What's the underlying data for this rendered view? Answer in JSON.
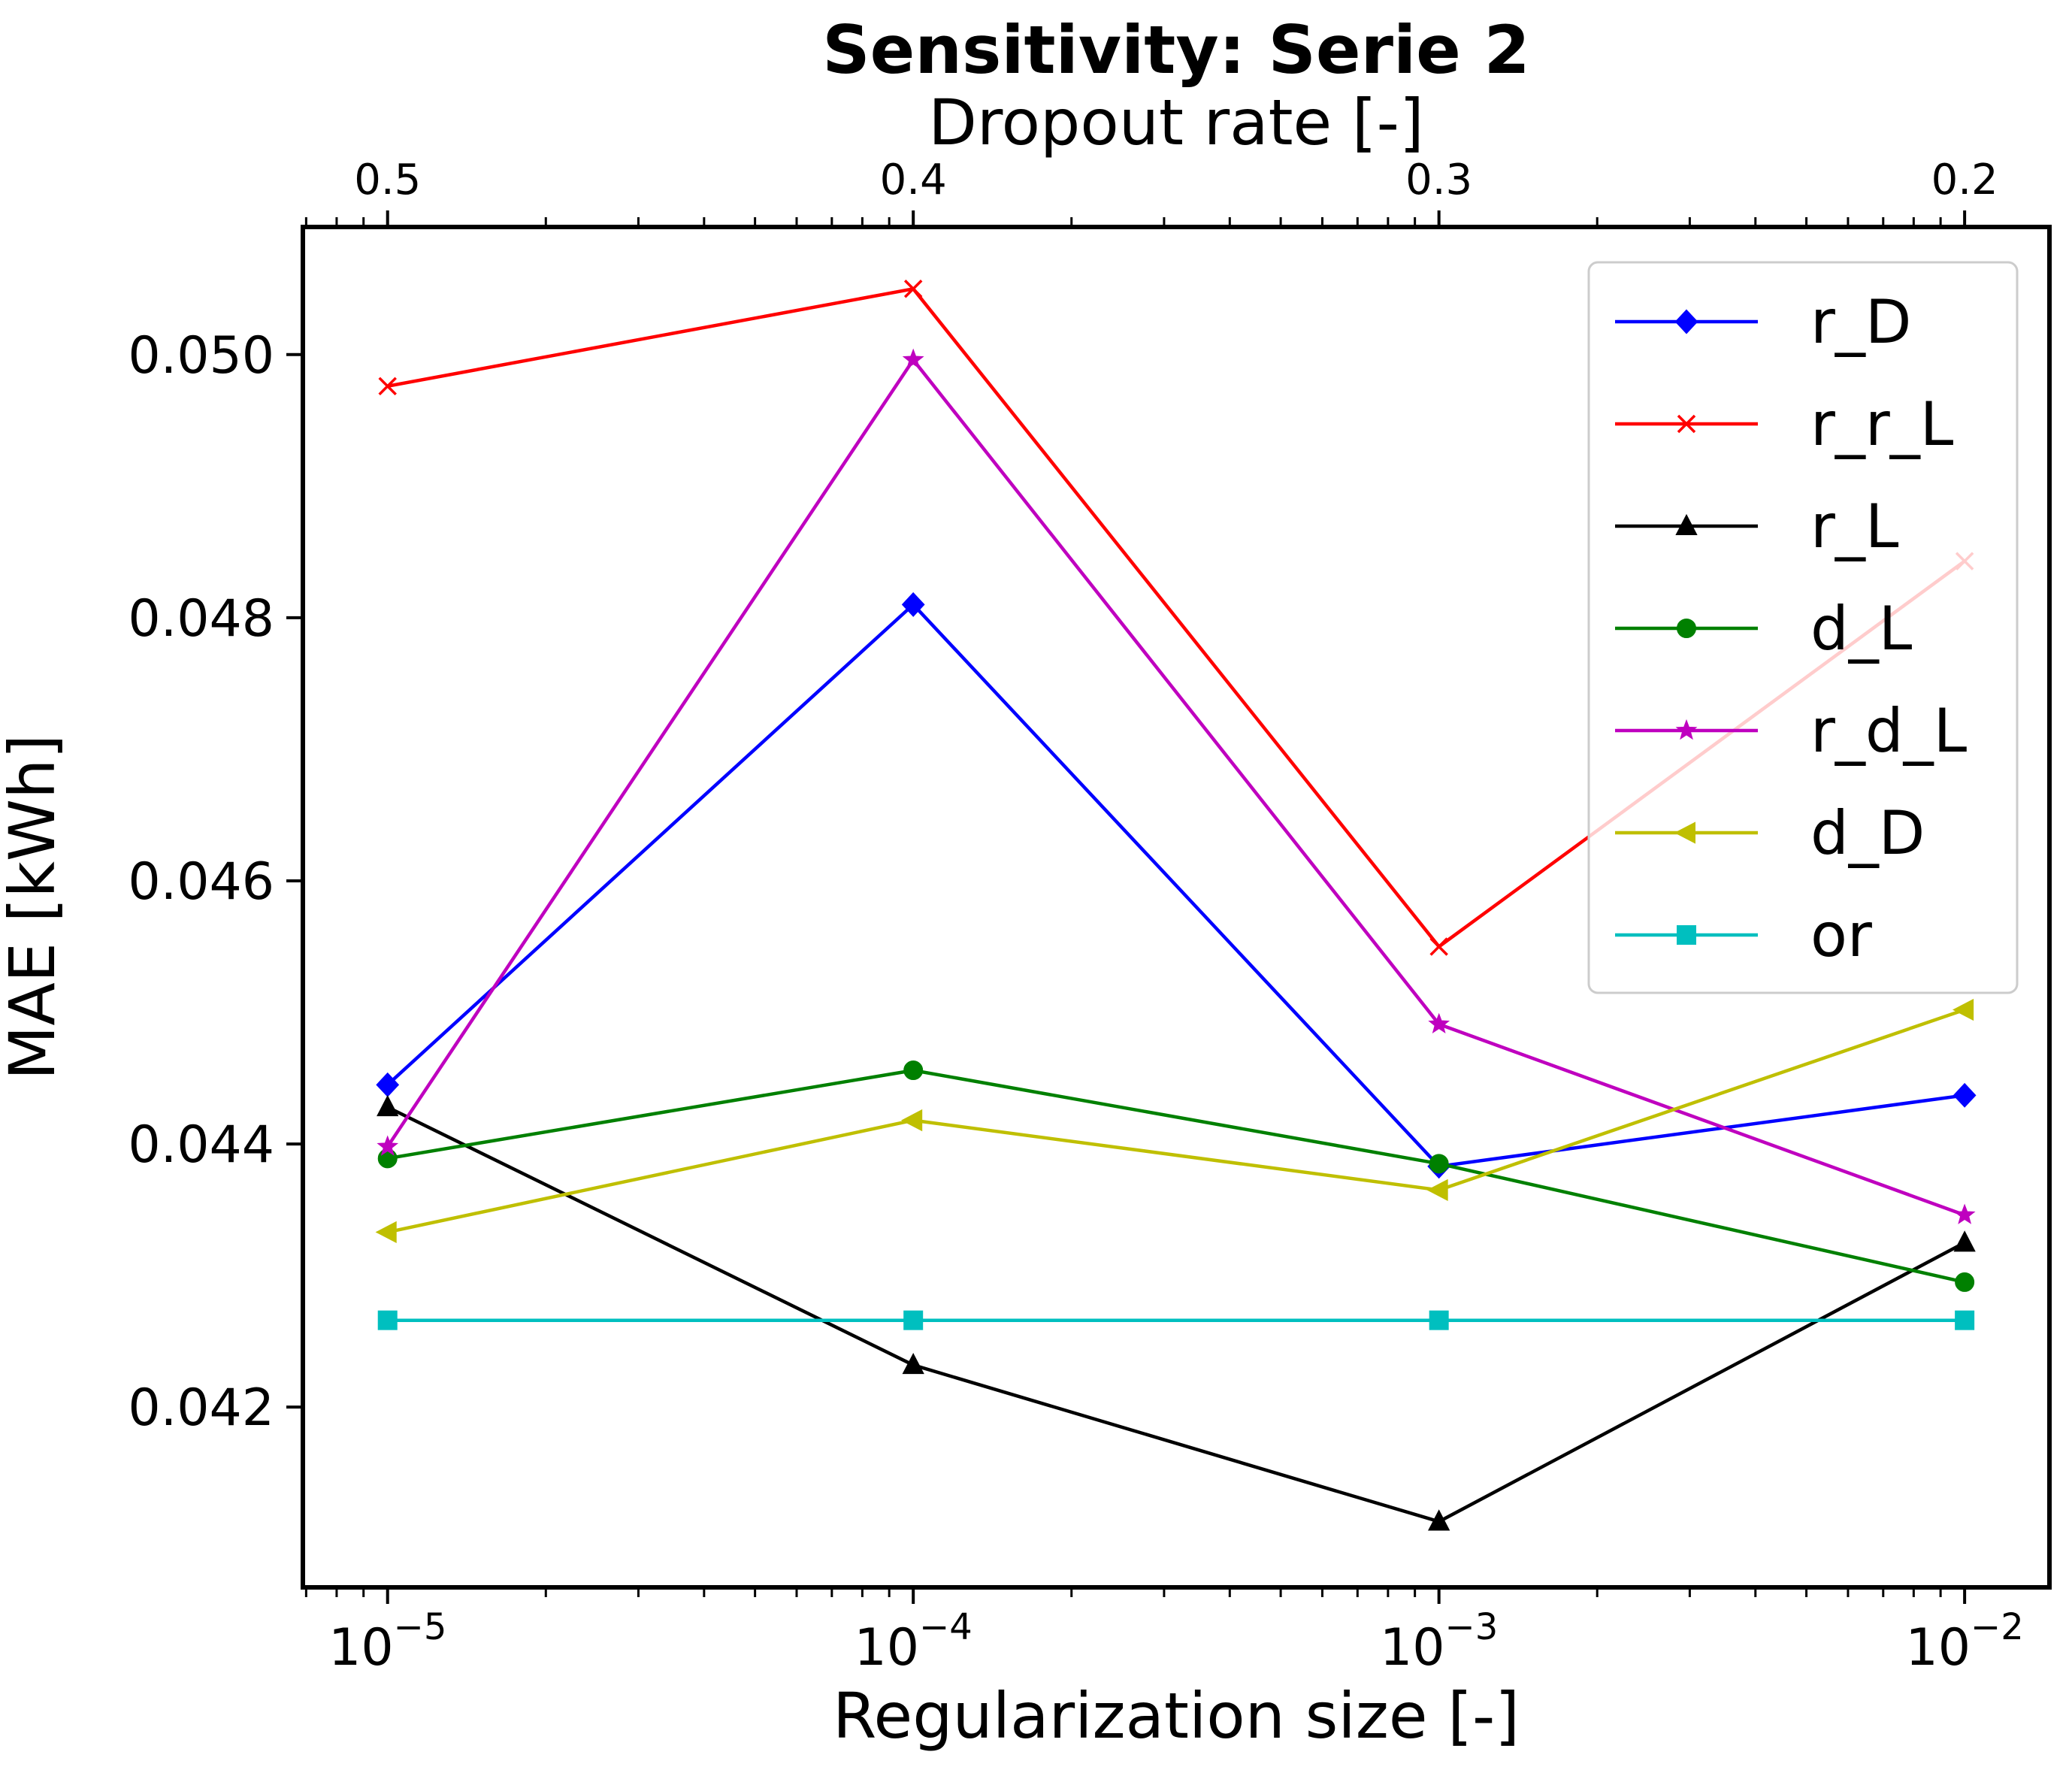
{
  "chart_data": {
    "type": "line",
    "title": "Sensitivity: Serie 2",
    "xlabel": "Regularization size [-]",
    "ylabel": "MAE [kWh]",
    "top_xlabel": "Dropout rate [-]",
    "x_scale": "log",
    "x": [
      1e-05,
      0.0001,
      0.001,
      0.01
    ],
    "x_tick_labels": [
      {
        "base": "10",
        "exp": "−5"
      },
      {
        "base": "10",
        "exp": "−4"
      },
      {
        "base": "10",
        "exp": "−3"
      },
      {
        "base": "10",
        "exp": "−2"
      }
    ],
    "top_x_tick_labels": [
      "0.5",
      "0.4",
      "0.3",
      "0.2"
    ],
    "xlim": [
      6.9e-06,
      0.0145
    ],
    "ylim": [
      0.04063,
      0.05097
    ],
    "y_ticks": [
      0.042,
      0.044,
      0.046,
      0.048,
      0.05
    ],
    "y_tick_labels": [
      "0.042",
      "0.044",
      "0.046",
      "0.048",
      "0.050"
    ],
    "grid": false,
    "legend_position": "upper right",
    "series": [
      {
        "name": "r_D",
        "color": "#0000ff",
        "marker": "diamond",
        "values": [
          0.04445,
          0.0481,
          0.04383,
          0.04437
        ]
      },
      {
        "name": "r_r_L",
        "color": "#ff0000",
        "marker": "x",
        "values": [
          0.04976,
          0.0505,
          0.0455,
          0.04843
        ]
      },
      {
        "name": "r_L",
        "color": "#000000",
        "marker": "triangle-up",
        "values": [
          0.04428,
          0.04232,
          0.04113,
          0.04325
        ]
      },
      {
        "name": "d_L",
        "color": "#008000",
        "marker": "circle",
        "values": [
          0.04389,
          0.04456,
          0.04385,
          0.04295
        ]
      },
      {
        "name": "r_d_L",
        "color": "#bf00bf",
        "marker": "star",
        "values": [
          0.04398,
          0.04996,
          0.04491,
          0.04346
        ]
      },
      {
        "name": "d_D",
        "color": "#bfbf00",
        "marker": "triangle-left",
        "values": [
          0.04333,
          0.04418,
          0.04365,
          0.04502
        ]
      },
      {
        "name": "or",
        "color": "#00bfbf",
        "marker": "square",
        "values": [
          0.04266,
          0.04266,
          0.04266,
          0.04266
        ]
      }
    ]
  }
}
